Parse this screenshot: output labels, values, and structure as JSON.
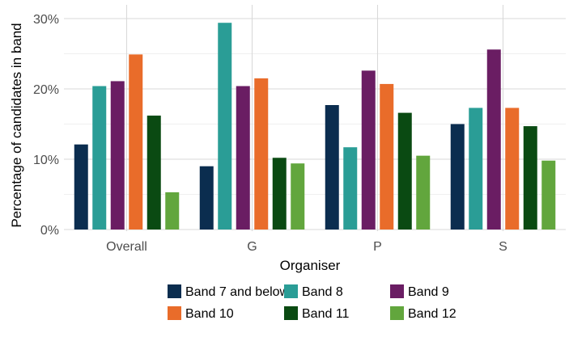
{
  "chart_data": {
    "type": "bar",
    "xlabel": "Organiser",
    "ylabel": "Percentage of candidates in band",
    "categories": [
      "Overall",
      "G",
      "P",
      "S"
    ],
    "ylim": [
      0,
      30
    ],
    "yticks": [
      "0%",
      "10%",
      "20%",
      "30%"
    ],
    "y_tick_values": [
      0,
      10,
      20,
      30
    ],
    "grid": true,
    "legend_position": "bottom",
    "series": [
      {
        "name": "Band 7 and below",
        "color": "#0b2d4f",
        "values": [
          12.1,
          9.0,
          17.7,
          15.0
        ]
      },
      {
        "name": "Band 8",
        "color": "#2a9d96",
        "values": [
          20.4,
          29.4,
          11.7,
          17.3
        ]
      },
      {
        "name": "Band 9",
        "color": "#6a1d63",
        "values": [
          21.1,
          20.4,
          22.6,
          25.6
        ]
      },
      {
        "name": "Band 10",
        "color": "#e96c2a",
        "values": [
          24.9,
          21.5,
          20.7,
          17.3
        ]
      },
      {
        "name": "Band 11",
        "color": "#0a4a12",
        "values": [
          16.2,
          10.2,
          16.6,
          14.7
        ]
      },
      {
        "name": "Band 12",
        "color": "#62a63d",
        "values": [
          5.3,
          9.4,
          10.5,
          9.8
        ]
      }
    ]
  }
}
